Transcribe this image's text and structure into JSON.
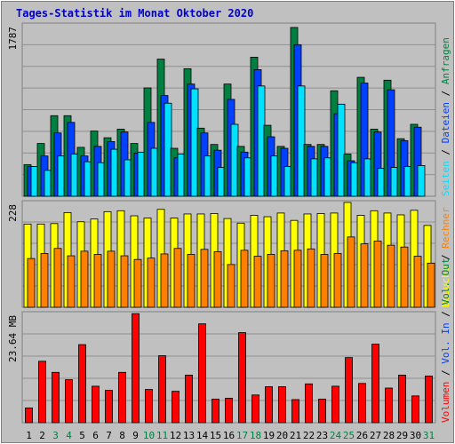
{
  "title": "Tages-Statistik im Monat Oktober 2020",
  "colors": {
    "background": "#c0c0c0",
    "title": "#0000cc",
    "hits": "#008040",
    "files": "#0040ff",
    "pages": "#00e0ff",
    "visits": "#ffff00",
    "sites": "#ff8000",
    "kbytes": "#ff0000",
    "weekend_label": "#008040",
    "weekday_label": "#000000"
  },
  "chart_data": [
    {
      "type": "bar",
      "panel": "hits",
      "ymax_label": "1787",
      "ylim": [
        0,
        1787
      ],
      "right_label": [
        {
          "text": "Seiten",
          "color": "#00e0ff"
        },
        {
          "text": " / ",
          "color": "#000000"
        },
        {
          "text": "Dateien",
          "color": "#0040ff"
        },
        {
          "text": " / ",
          "color": "#000000"
        },
        {
          "text": "Anfragen",
          "color": "#008040"
        }
      ],
      "x": [
        "1",
        "2",
        "3",
        "4",
        "5",
        "6",
        "7",
        "8",
        "9",
        "10",
        "11",
        "12",
        "13",
        "14",
        "15",
        "16",
        "17",
        "18",
        "19",
        "20",
        "21",
        "22",
        "23",
        "24",
        "25",
        "26",
        "27",
        "28",
        "29",
        "30",
        "31"
      ],
      "series": [
        {
          "name": "Anfragen",
          "color": "#008040",
          "values": [
            330,
            550,
            840,
            840,
            510,
            680,
            610,
            700,
            550,
            1130,
            1430,
            500,
            1330,
            710,
            540,
            1170,
            520,
            1450,
            740,
            520,
            1760,
            540,
            540,
            1100,
            440,
            1240,
            700,
            1210,
            600,
            750,
            0
          ]
        },
        {
          "name": "Dateien",
          "color": "#0040ff",
          "values": [
            310,
            420,
            660,
            770,
            420,
            520,
            570,
            670,
            450,
            770,
            1050,
            400,
            1170,
            660,
            480,
            1010,
            460,
            1320,
            620,
            500,
            1580,
            520,
            520,
            860,
            370,
            1180,
            670,
            1110,
            580,
            720,
            0
          ]
        },
        {
          "name": "Seiten",
          "color": "#00e0ff",
          "values": [
            310,
            270,
            420,
            440,
            360,
            350,
            490,
            380,
            460,
            500,
            970,
            440,
            1120,
            420,
            300,
            750,
            400,
            1150,
            420,
            310,
            1150,
            390,
            400,
            960,
            350,
            390,
            290,
            300,
            310,
            320,
            0
          ]
        }
      ]
    },
    {
      "type": "bar",
      "panel": "visits",
      "ymax_label": "228",
      "ylim": [
        0,
        228
      ],
      "right_label": [
        {
          "text": "Besuche",
          "color": "#ffff00"
        },
        {
          "text": " / ",
          "color": "#000000"
        },
        {
          "text": "Rechner",
          "color": "#ff8000"
        }
      ],
      "x": [
        "1",
        "2",
        "3",
        "4",
        "5",
        "6",
        "7",
        "8",
        "9",
        "10",
        "11",
        "12",
        "13",
        "14",
        "15",
        "16",
        "17",
        "18",
        "19",
        "20",
        "21",
        "22",
        "23",
        "24",
        "25",
        "26",
        "27",
        "28",
        "29",
        "30",
        "31"
      ],
      "series": [
        {
          "name": "Besuche",
          "color": "#ffff00",
          "values": [
            181,
            181,
            182,
            206,
            186,
            192,
            208,
            210,
            199,
            194,
            213,
            194,
            203,
            203,
            204,
            193,
            183,
            200,
            197,
            205,
            189,
            203,
            204,
            205,
            228,
            200,
            210,
            205,
            201,
            211,
            178
          ]
        },
        {
          "name": "Rechner",
          "color": "#ff8000",
          "values": [
            106,
            117,
            128,
            112,
            122,
            115,
            122,
            112,
            104,
            107,
            116,
            128,
            115,
            126,
            121,
            93,
            124,
            111,
            115,
            123,
            124,
            127,
            115,
            117,
            153,
            138,
            144,
            135,
            131,
            111,
            96
          ]
        }
      ]
    },
    {
      "type": "bar",
      "panel": "kbytes",
      "ymax_label": "23.64 MB",
      "ylim": [
        0,
        23.64
      ],
      "right_label": [
        {
          "text": "Volumen",
          "color": "#ff0000"
        },
        {
          "text": " / ",
          "color": "#000000"
        },
        {
          "text": "Vol. In",
          "color": "#0040ff"
        },
        {
          "text": " / ",
          "color": "#000000"
        },
        {
          "text": "Vol. Out",
          "color": "#008040"
        }
      ],
      "x": [
        "1",
        "2",
        "3",
        "4",
        "5",
        "6",
        "7",
        "8",
        "9",
        "10",
        "11",
        "12",
        "13",
        "14",
        "15",
        "16",
        "17",
        "18",
        "19",
        "20",
        "21",
        "22",
        "23",
        "24",
        "25",
        "26",
        "27",
        "28",
        "29",
        "30",
        "31"
      ],
      "series": [
        {
          "name": "Volumen",
          "color": "#ff0000",
          "values": [
            3.2,
            13.3,
            10.9,
            9.3,
            16.9,
            7.9,
            7.0,
            10.9,
            23.6,
            7.2,
            14.5,
            6.8,
            10.3,
            21.4,
            5.1,
            5.3,
            19.5,
            6.0,
            7.8,
            7.8,
            5.0,
            8.4,
            5.1,
            7.9,
            14.1,
            8.5,
            17.0,
            7.5,
            10.3,
            5.8,
            10.1
          ]
        }
      ]
    }
  ],
  "weekend_days": [
    "3",
    "4",
    "10",
    "11",
    "17",
    "18",
    "24",
    "25",
    "31"
  ]
}
